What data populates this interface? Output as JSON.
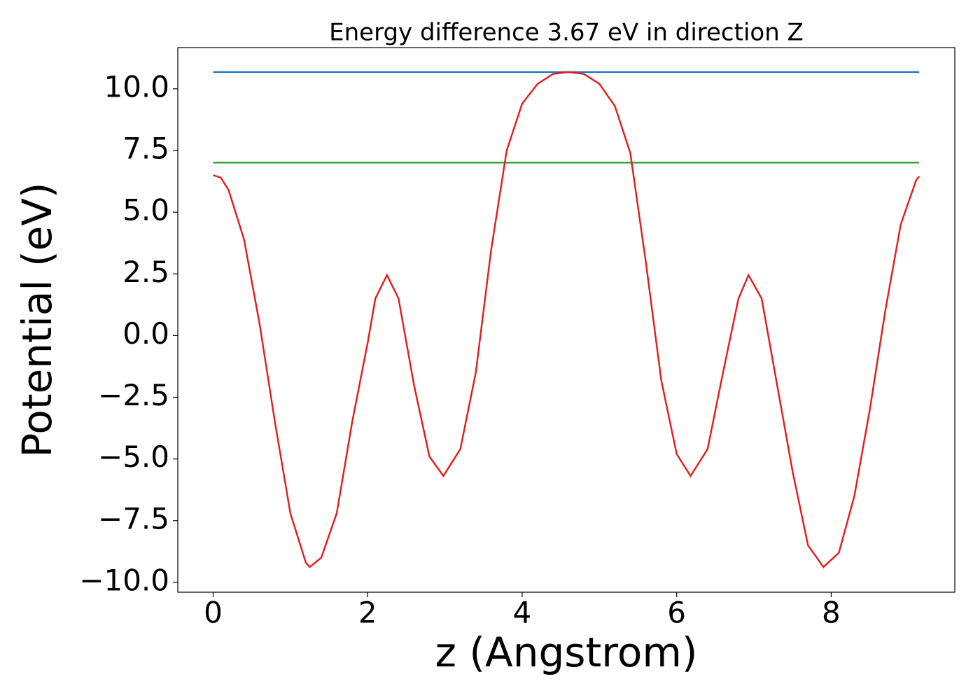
{
  "chart_data": {
    "type": "line",
    "title": "Energy difference 3.67 eV in direction Z",
    "xlabel": "z (Angstrom)",
    "ylabel": "Potential (eV)",
    "xlim": [
      -0.457,
      9.6
    ],
    "ylim": [
      -10.4,
      11.67
    ],
    "xticks": [
      0,
      2,
      4,
      6,
      8
    ],
    "yticks": [
      {
        "value": -10,
        "label": "−10.0"
      },
      {
        "value": -7.5,
        "label": "−7.5"
      },
      {
        "value": -5,
        "label": "−5.0"
      },
      {
        "value": -2.5,
        "label": "−2.5"
      },
      {
        "value": 0,
        "label": "0.0"
      },
      {
        "value": 2.5,
        "label": "2.5"
      },
      {
        "value": 5,
        "label": "5.0"
      },
      {
        "value": 7.5,
        "label": "7.5"
      },
      {
        "value": 10,
        "label": "10.0"
      }
    ],
    "grid": false,
    "series": [
      {
        "color": "#1f77b4",
        "x": [
          0,
          9.14
        ],
        "values": [
          10.68,
          10.68
        ]
      },
      {
        "color": "#2ca02c",
        "x": [
          0,
          9.14
        ],
        "values": [
          7.01,
          7.01
        ]
      },
      {
        "color": "#e41a1c",
        "x": [
          0,
          0.1,
          0.2,
          0.4,
          0.6,
          0.8,
          1.0,
          1.2,
          1.25,
          1.4,
          1.6,
          1.8,
          2.0,
          2.1,
          2.25,
          2.4,
          2.6,
          2.8,
          2.98,
          3.2,
          3.4,
          3.6,
          3.8,
          4.0,
          4.2,
          4.4,
          4.6,
          4.8,
          5.0,
          5.2,
          5.4,
          5.6,
          5.8,
          6.0,
          6.18,
          6.4,
          6.6,
          6.8,
          6.93,
          7.1,
          7.3,
          7.5,
          7.7,
          7.9,
          8.1,
          8.3,
          8.5,
          8.7,
          8.9,
          9.1,
          9.14
        ],
        "values": [
          6.5,
          6.4,
          5.9,
          3.9,
          0.5,
          -3.5,
          -7.2,
          -9.2,
          -9.38,
          -9.0,
          -7.2,
          -3.5,
          -0.3,
          1.5,
          2.45,
          1.5,
          -2.0,
          -4.9,
          -5.69,
          -4.6,
          -1.5,
          3.5,
          7.5,
          9.4,
          10.2,
          10.6,
          10.68,
          10.6,
          10.2,
          9.3,
          7.4,
          3.0,
          -1.8,
          -4.8,
          -5.69,
          -4.6,
          -1.5,
          1.5,
          2.45,
          1.5,
          -2.0,
          -5.5,
          -8.5,
          -9.38,
          -8.8,
          -6.5,
          -3.0,
          1.0,
          4.5,
          6.3,
          6.45
        ]
      }
    ]
  }
}
